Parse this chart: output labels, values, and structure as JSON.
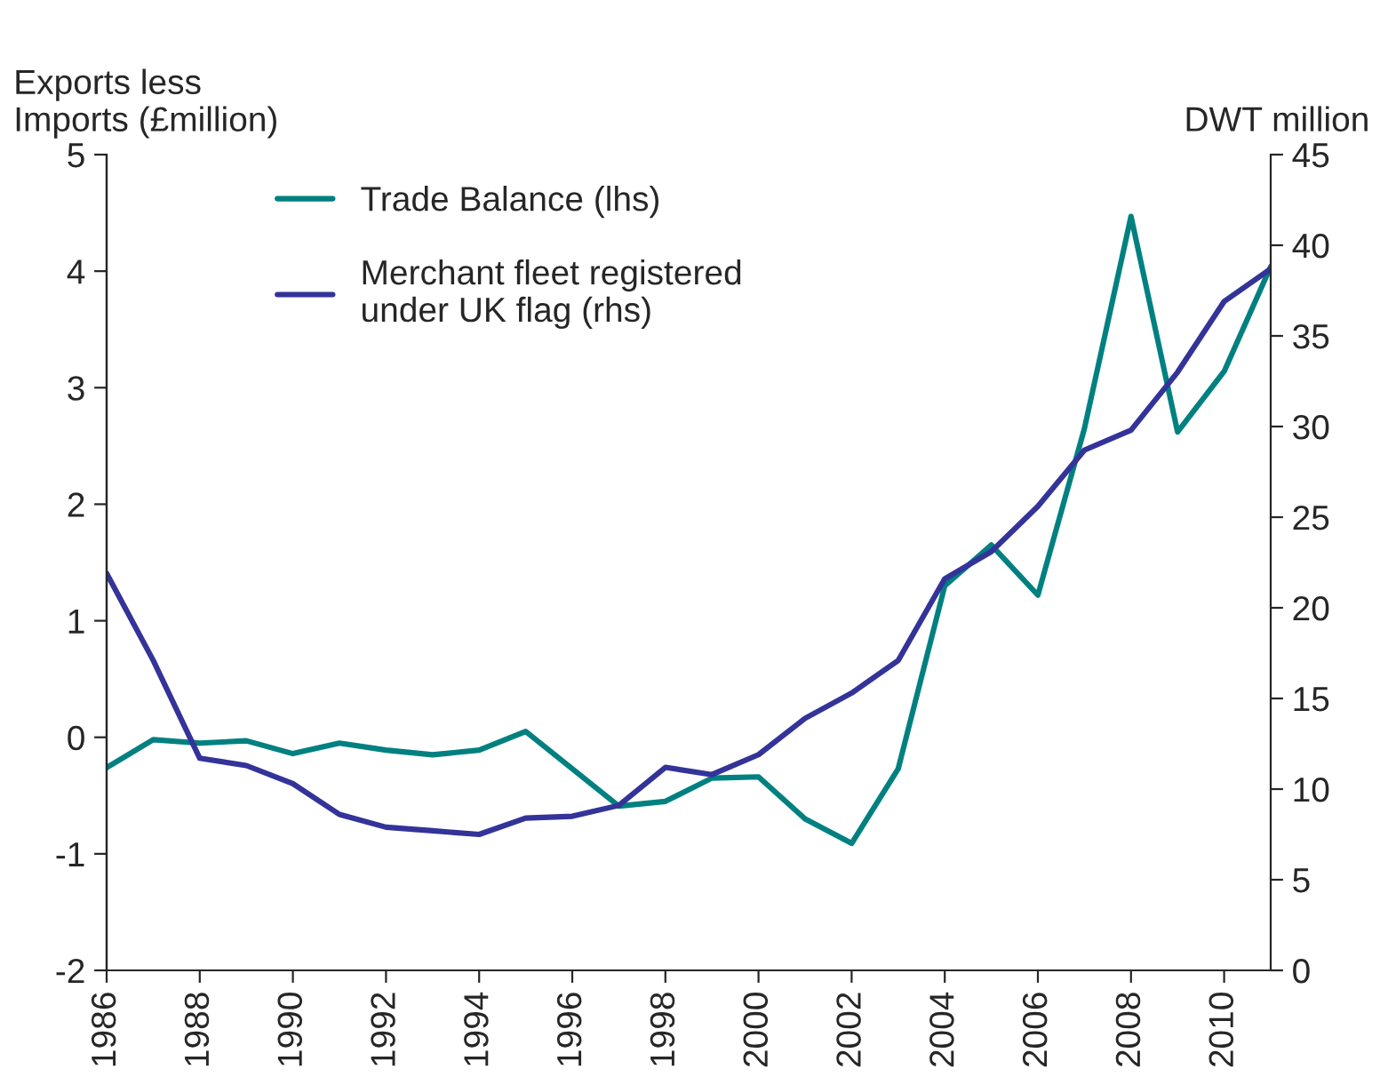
{
  "chart_data": {
    "type": "line",
    "ylabel": "Exports less\nImports (£million)",
    "y2label": "DWT million",
    "x": [
      1986,
      1987,
      1988,
      1989,
      1990,
      1991,
      1992,
      1993,
      1994,
      1995,
      1996,
      1997,
      1998,
      1999,
      2000,
      2001,
      2002,
      2003,
      2004,
      2005,
      2006,
      2007,
      2008,
      2009,
      2010,
      2011
    ],
    "series": [
      {
        "name": "Trade Balance (lhs)",
        "color": "#008080",
        "values": [
          -0.26,
          -0.02,
          -0.05,
          -0.03,
          -0.14,
          -0.05,
          -0.11,
          -0.15,
          -0.11,
          0.05,
          -0.27,
          -0.59,
          -0.55,
          -0.35,
          -0.34,
          -0.7,
          -0.91,
          -0.27,
          1.3,
          1.65,
          1.22,
          2.65,
          4.47,
          2.62,
          3.14,
          4.04
        ]
      },
      {
        "name": "Merchant fleet registered\nunder UK flag (rhs)",
        "color": "#333399",
        "axis": "y2",
        "values": [
          21.9,
          17.1,
          11.7,
          11.3,
          10.3,
          8.6,
          7.9,
          7.7,
          7.5,
          8.4,
          8.5,
          9.1,
          11.2,
          10.8,
          11.9,
          13.9,
          15.3,
          17.1,
          21.6,
          23.1,
          25.6,
          28.7,
          29.8,
          33.0,
          36.9,
          38.7
        ]
      }
    ],
    "xlim": [
      1986,
      2011
    ],
    "xticks": [
      1986,
      1988,
      1990,
      1992,
      1994,
      1996,
      1998,
      2000,
      2002,
      2004,
      2006,
      2008,
      2010
    ],
    "ylim": [
      -2,
      5
    ],
    "yticks": [
      -2,
      -1,
      0,
      1,
      2,
      3,
      4,
      5
    ],
    "y2lim": [
      0,
      45
    ],
    "y2ticks": [
      0,
      5,
      10,
      15,
      20,
      25,
      30,
      35,
      40,
      45
    ],
    "legend": "top left",
    "grid": false,
    "marker": "none",
    "line_style": "solid"
  }
}
